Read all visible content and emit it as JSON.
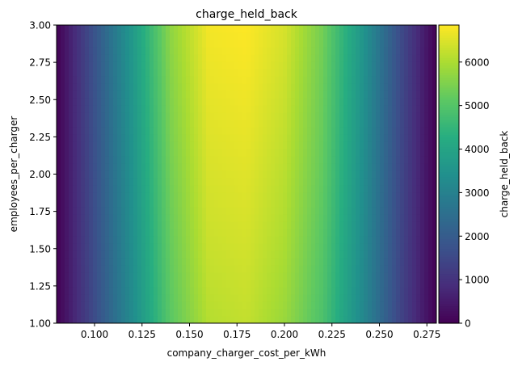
{
  "chart_data": {
    "type": "heatmap",
    "title": "charge_held_back",
    "xlabel": "company_charger_cost_per_kWh",
    "ylabel": "employees_per_charger",
    "xlim": [
      0.08,
      0.28
    ],
    "ylim": [
      1.0,
      3.0
    ],
    "x_ticks": [
      "0.100",
      "0.125",
      "0.150",
      "0.175",
      "0.200",
      "0.225",
      "0.250",
      "0.275"
    ],
    "x_tick_values": [
      0.1,
      0.125,
      0.15,
      0.175,
      0.2,
      0.225,
      0.25,
      0.275
    ],
    "y_ticks": [
      "1.00",
      "1.25",
      "1.50",
      "1.75",
      "2.00",
      "2.25",
      "2.50",
      "2.75",
      "3.00"
    ],
    "y_tick_values": [
      1.0,
      1.25,
      1.5,
      1.75,
      2.0,
      2.25,
      2.5,
      2.75,
      3.0
    ],
    "colorscale": "viridis",
    "colorbar": {
      "label": "charge_held_back",
      "range": [
        0,
        6850
      ],
      "ticks": [
        "0",
        "1000",
        "2000",
        "3000",
        "4000",
        "5000",
        "6000"
      ],
      "tick_values": [
        0,
        1000,
        2000,
        3000,
        4000,
        5000,
        6000
      ]
    },
    "x": [
      0.08,
      0.1,
      0.12,
      0.14,
      0.16,
      0.18,
      0.2,
      0.22,
      0.24,
      0.26,
      0.28
    ],
    "y": [
      1.0,
      1.5,
      2.0,
      2.5,
      3.0
    ],
    "z": [
      [
        0,
        1600,
        3300,
        5100,
        6100,
        6250,
        5800,
        4900,
        3300,
        1500,
        0
      ],
      [
        0,
        1650,
        3400,
        5250,
        6300,
        6400,
        6000,
        5050,
        3400,
        1550,
        0
      ],
      [
        0,
        1700,
        3500,
        5400,
        6450,
        6550,
        6150,
        5200,
        3500,
        1600,
        0
      ],
      [
        0,
        1750,
        3600,
        5550,
        6600,
        6700,
        6300,
        5300,
        3600,
        1650,
        0
      ],
      [
        0,
        1800,
        3700,
        5700,
        6750,
        6850,
        6450,
        5400,
        3700,
        1700,
        0
      ]
    ]
  }
}
